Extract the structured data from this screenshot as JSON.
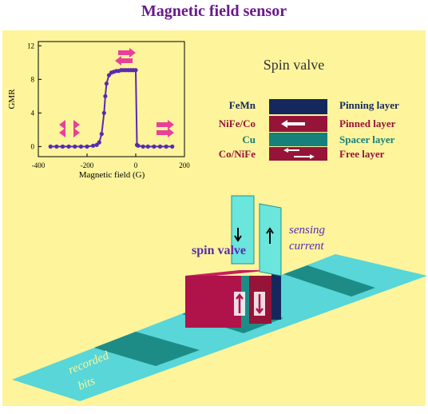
{
  "title": "Magnetic field sensor",
  "chart_data": {
    "type": "line",
    "xlabel": "Magnetic field (G)",
    "ylabel": "GMR",
    "x": [
      -350,
      -325,
      -300,
      -275,
      -250,
      -225,
      -200,
      -175,
      -160,
      -150,
      -140,
      -130,
      -125,
      -120,
      -110,
      -100,
      -90,
      -80,
      -70,
      -60,
      -50,
      -40,
      -30,
      -20,
      -10,
      0,
      5,
      10,
      30,
      50,
      75,
      100,
      125,
      150
    ],
    "series": [
      {
        "name": "GMR",
        "color": "#5a2ab0",
        "values": [
          0,
          0,
          0,
          0,
          0,
          0,
          0,
          0.1,
          0.2,
          0.5,
          1.5,
          4,
          6,
          7.5,
          8.5,
          8.8,
          8.9,
          9,
          9,
          9.1,
          9.1,
          9.1,
          9.1,
          9.1,
          9.1,
          9.1,
          0.2,
          0.1,
          0,
          0,
          0,
          0,
          0,
          0
        ]
      }
    ],
    "xlim": [
      -400,
      200
    ],
    "ylim": [
      -1.2,
      12.5
    ],
    "xticks": [
      -400,
      -200,
      0,
      200
    ],
    "yticks": [
      0,
      4,
      8,
      12
    ]
  },
  "spin_valve_title": "Spin valve",
  "layers": [
    {
      "material": "FeMn",
      "role": "Pinning layer"
    },
    {
      "material": "NiFe/Co",
      "role": "Pinned layer"
    },
    {
      "material": "Cu",
      "role": "Spacer layer"
    },
    {
      "material": "Co/NiFe",
      "role": "Free layer"
    }
  ],
  "labels": {
    "spin_valve": "spin valve",
    "sensing": "sensing",
    "current": "current",
    "recorded": "recorded",
    "bits": "bits"
  }
}
